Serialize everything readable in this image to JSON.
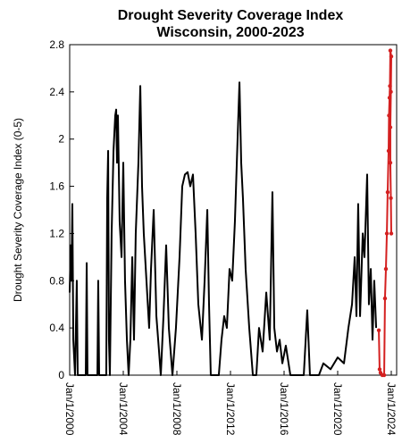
{
  "chart_data": {
    "type": "line",
    "title": "Drought Severity Coverage Index",
    "subtitle": "Wisconsin, 2000-2023",
    "y_label": "Drought Severity Coverage Index (0-5)",
    "xlim": [
      2000,
      2024.4
    ],
    "xticks": [
      {
        "value": 2000,
        "label": "Jan/1/2000"
      },
      {
        "value": 2004,
        "label": "Jan/1/2004"
      },
      {
        "value": 2008,
        "label": "Jan/1/2008"
      },
      {
        "value": 2012,
        "label": "Jan/1/2012"
      },
      {
        "value": 2016,
        "label": "Jan/1/2016"
      },
      {
        "value": 2020,
        "label": "Jan/1/2020"
      },
      {
        "value": 2024,
        "label": "Jan/1/2024"
      }
    ],
    "ylim": [
      0,
      2.8
    ],
    "yticks": [
      0,
      0.4,
      0.8,
      1.2,
      1.6,
      2,
      2.4,
      2.8
    ],
    "series": [
      {
        "color": "#000000",
        "markers": false,
        "x": [
          2000.0,
          2000.07,
          2000.13,
          2000.2,
          2000.27,
          2000.4,
          2000.53,
          2000.6,
          2001.2,
          2001.27,
          2001.33,
          2002.07,
          2002.13,
          2002.2,
          2002.73,
          2002.8,
          2002.87,
          2002.93,
          2003.0,
          2003.13,
          2003.27,
          2003.4,
          2003.47,
          2003.53,
          2003.6,
          2003.73,
          2003.87,
          2004.0,
          2004.13,
          2004.27,
          2004.4,
          2004.53,
          2004.67,
          2004.8,
          2004.93,
          2005.13,
          2005.27,
          2005.4,
          2005.53,
          2005.73,
          2005.93,
          2006.07,
          2006.27,
          2006.47,
          2006.67,
          2006.8,
          2007.0,
          2007.2,
          2007.4,
          2007.67,
          2007.93,
          2008.2,
          2008.4,
          2008.6,
          2008.8,
          2009.0,
          2009.2,
          2009.4,
          2009.6,
          2009.87,
          2010.07,
          2010.27,
          2010.4,
          2010.53,
          2011.13,
          2011.33,
          2011.53,
          2011.73,
          2011.93,
          2012.13,
          2012.33,
          2012.53,
          2012.67,
          2012.8,
          2012.93,
          2013.13,
          2013.4,
          2013.67,
          2013.93,
          2014.13,
          2014.4,
          2014.67,
          2014.93,
          2015.13,
          2015.27,
          2015.47,
          2015.67,
          2015.87,
          2016.13,
          2016.47,
          2017.47,
          2017.73,
          2017.93,
          2018.6,
          2018.93,
          2019.47,
          2020.0,
          2020.47,
          2020.8,
          2021.07,
          2021.27,
          2021.4,
          2021.53,
          2021.67,
          2021.87,
          2022.0,
          2022.2,
          2022.33,
          2022.47,
          2022.6,
          2022.73,
          2022.87
        ],
        "values": [
          0.7,
          1.1,
          0.8,
          1.45,
          0.3,
          0,
          0.8,
          0,
          0,
          0.95,
          0,
          0,
          0.8,
          0,
          0,
          1.5,
          1.9,
          0.3,
          0,
          1.2,
          1.9,
          2.2,
          2.25,
          1.8,
          2.2,
          1.3,
          1.0,
          1.8,
          0.8,
          0.3,
          0,
          0.3,
          1.0,
          0.3,
          1.2,
          1.8,
          2.45,
          1.6,
          1.2,
          0.8,
          0.4,
          0.9,
          1.4,
          0.5,
          0.2,
          0,
          0.5,
          1.1,
          0.4,
          0,
          0.4,
          1.0,
          1.6,
          1.7,
          1.72,
          1.6,
          1.7,
          1.2,
          0.6,
          0.3,
          0.8,
          1.4,
          0.6,
          0,
          0,
          0.3,
          0.5,
          0.4,
          0.9,
          0.8,
          1.3,
          2.0,
          2.48,
          1.8,
          1.5,
          0.9,
          0.4,
          0,
          0,
          0.4,
          0.2,
          0.7,
          0.3,
          1.55,
          0.4,
          0.2,
          0.3,
          0.1,
          0.25,
          0,
          0,
          0.55,
          0,
          0,
          0.1,
          0.05,
          0.15,
          0.1,
          0.4,
          0.6,
          1.0,
          0.5,
          1.45,
          0.5,
          1.2,
          1.0,
          1.7,
          0.6,
          0.9,
          0.3,
          0.8,
          0.4
        ]
      },
      {
        "color": "#d42020",
        "markers": true,
        "x": [
          2023.07,
          2023.13,
          2023.2,
          2023.33,
          2023.47,
          2023.53,
          2023.6,
          2023.67,
          2023.73,
          2023.8,
          2023.83,
          2023.87,
          2023.9,
          2023.93,
          2024.0,
          2023.97,
          2023.93,
          2023.93,
          2023.97,
          2024.0
        ],
        "values": [
          0.38,
          0.05,
          0.02,
          0,
          0,
          0.65,
          0.9,
          1.2,
          1.55,
          1.9,
          2.2,
          2.35,
          2.45,
          2.75,
          2.7,
          2.4,
          2.1,
          1.8,
          1.5,
          1.2
        ]
      }
    ]
  }
}
